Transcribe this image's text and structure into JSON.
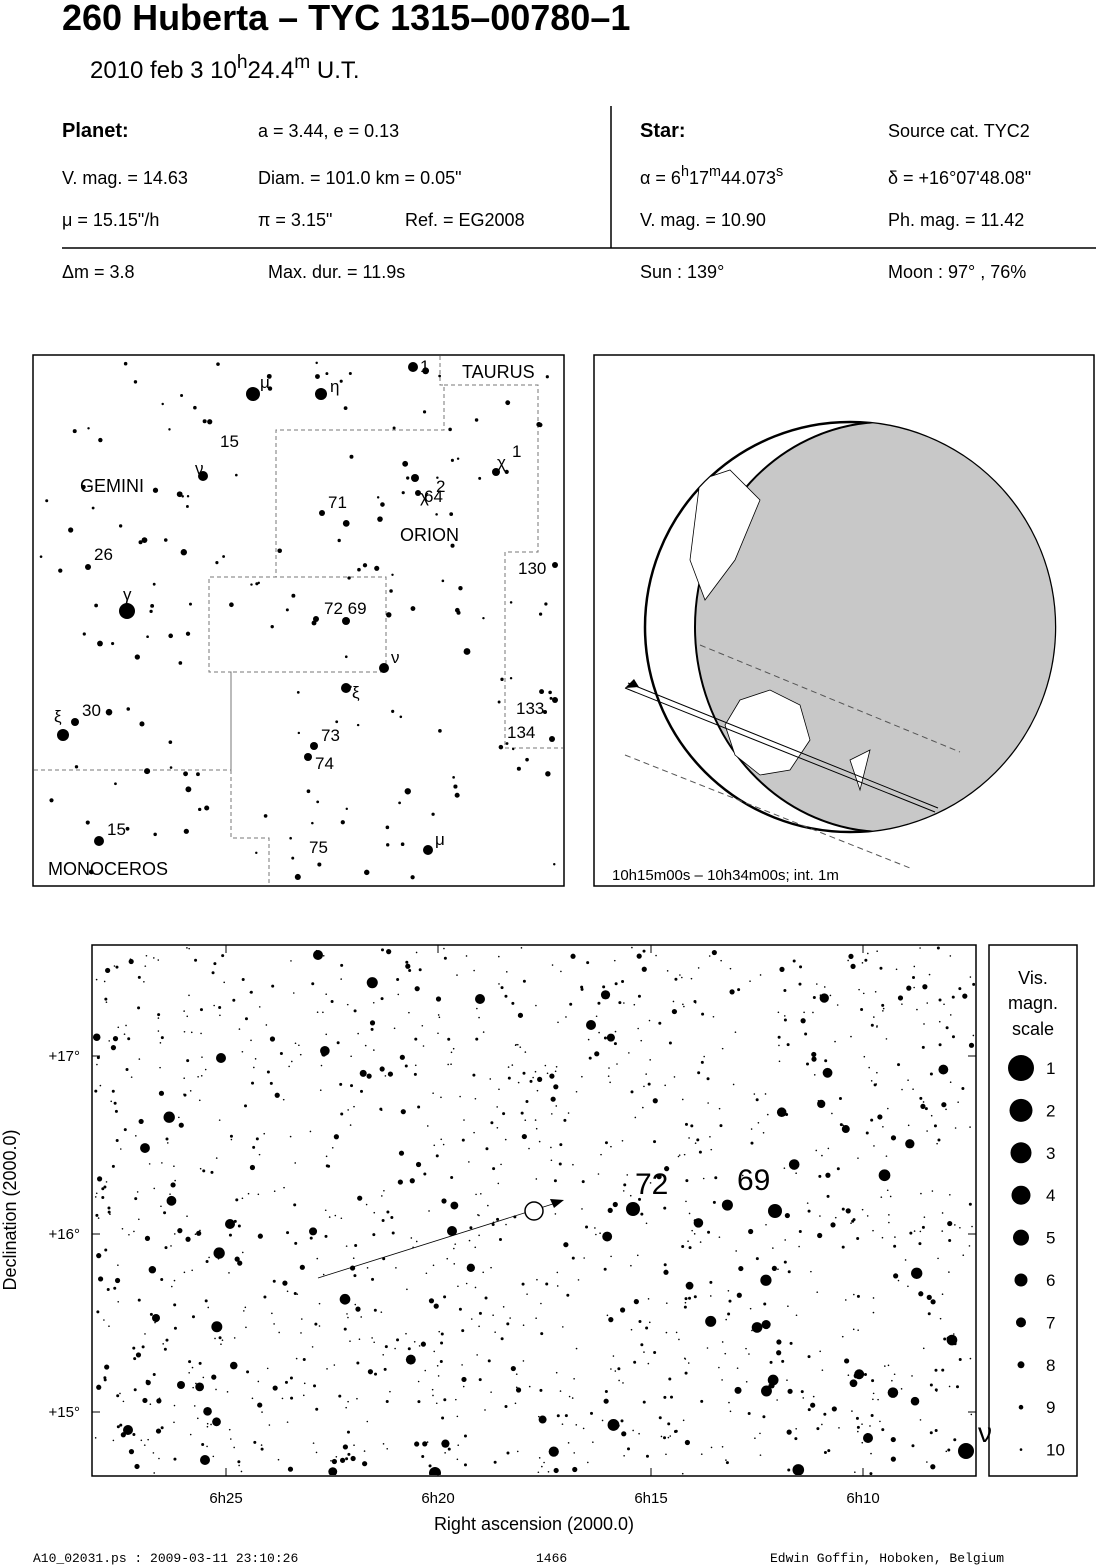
{
  "header": {
    "title": "260 Huberta  –  TYC 1315–00780–1",
    "date": "2010 feb  3  10",
    "hour_unit": "h",
    "minutes": "24.4",
    "minute_unit": "m",
    "time_system": " U.T."
  },
  "planet": {
    "heading": "Planet:",
    "orbit": "a = 3.44, e = 0.13",
    "vmag": "V. mag. = 14.63",
    "diam": "Diam. = 101.0 km = 0.05\"",
    "motion": "μ =  15.15\"/h",
    "parallax": "π =  3.15\"",
    "ref": "Ref. = EG2008"
  },
  "star": {
    "heading": "Star:",
    "source": "Source cat.  TYC2",
    "ra_hours": "α =  6",
    "ra_h": "h",
    "ra_minutes": "17",
    "ra_m": "m",
    "ra_seconds": "44.073",
    "ra_s": "s",
    "dec": "δ = +16°07'48.08\"",
    "vmag": "V. mag. = 10.90",
    "phmag": "Ph. mag. = 11.42"
  },
  "summary": {
    "delta_mag": "Δm = 3.8",
    "max_duration": "Max. dur. = 11.9s",
    "sun": "Sun : 139°",
    "moon": "Moon :  97° , 76%"
  },
  "finder": {
    "labels": [
      "TAURUS",
      "GEMINI",
      "ORION",
      "MONOCEROS",
      "1",
      "μ",
      "η",
      "15",
      "ν",
      "χ",
      "2",
      "χ",
      "1",
      "71",
      "64",
      "26",
      "γ",
      "130",
      "72 69",
      "ν",
      "ξ",
      "ξ",
      "30",
      "133",
      "134",
      "73",
      "74",
      "15",
      "75",
      "μ"
    ]
  },
  "globe": {
    "caption": "10h15m00s – 10h34m00s; int.  1m"
  },
  "star_chart": {
    "y_axis_label": "Declination (2000.0)",
    "x_axis_label": "Right ascension (2000.0)",
    "yticks": [
      "+17°",
      "+16°",
      "+15°"
    ],
    "xticks": [
      "6h25",
      "6h20",
      "6h15",
      "6h10"
    ],
    "star_labels": [
      "72",
      "69",
      "ν"
    ]
  },
  "scale": {
    "title": [
      "Vis.",
      "magn.",
      "scale"
    ],
    "magnitudes": [
      "1",
      "2",
      "3",
      "4",
      "5",
      "6",
      "7",
      "8",
      "9",
      "10"
    ]
  },
  "footer": {
    "file": "A10_02031.ps : 2009-03-11 23:10:26",
    "number": "1466",
    "author": "Edwin Goffin, Hoboken, Belgium"
  }
}
